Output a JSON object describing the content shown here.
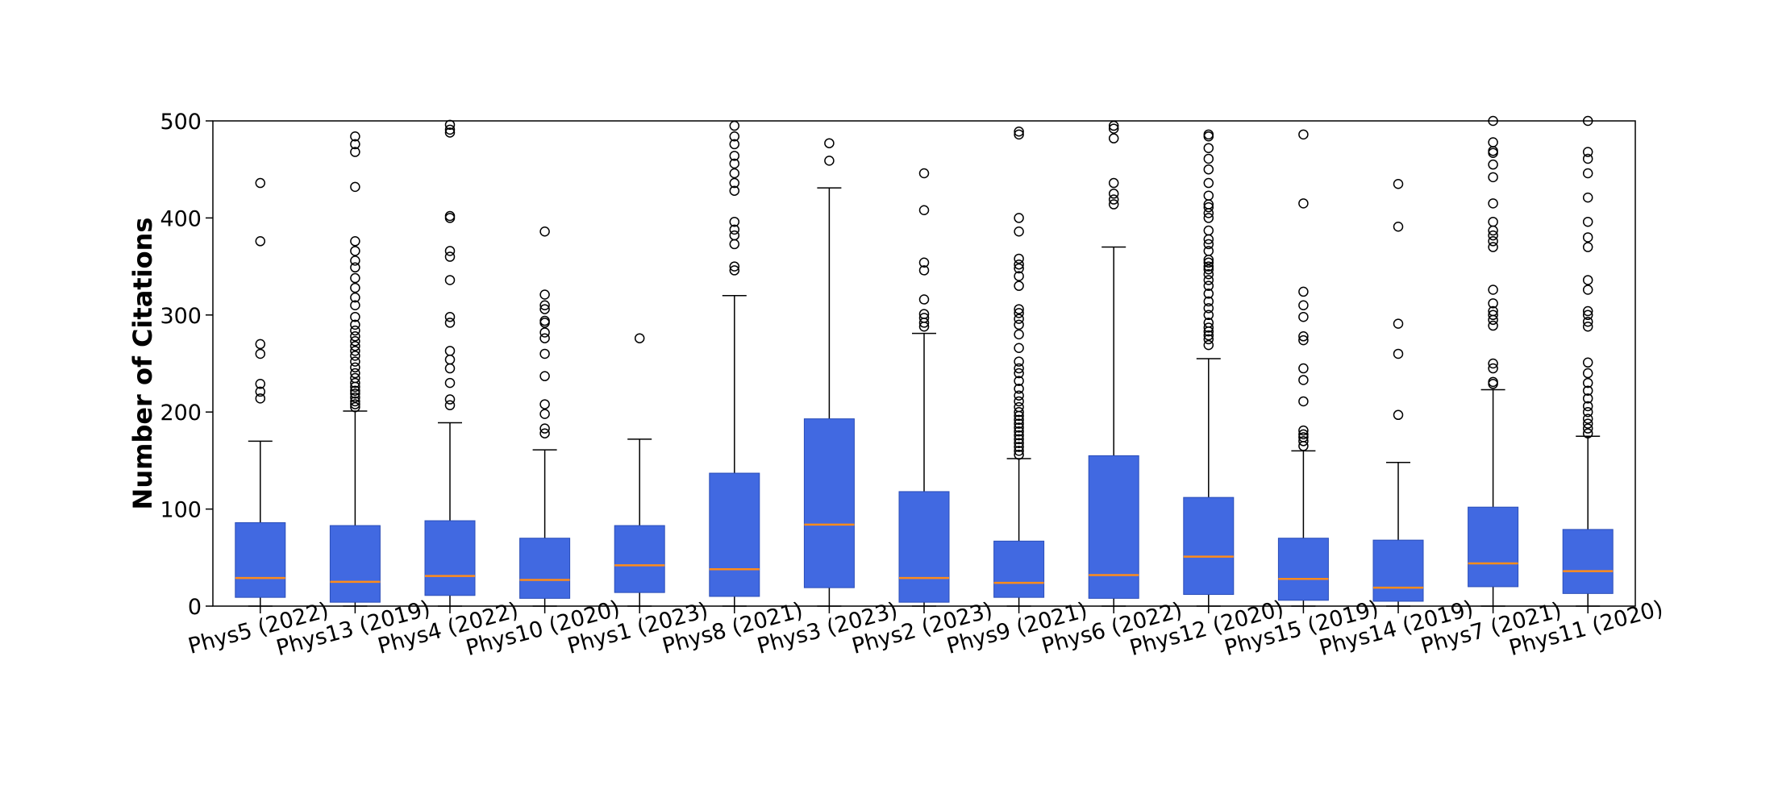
{
  "chart_data": {
    "type": "box",
    "title": "",
    "xlabel": "",
    "ylabel": "Number of Citations",
    "ylim": [
      0,
      500
    ],
    "yticks": [
      0,
      100,
      200,
      300,
      400,
      500
    ],
    "grid": false,
    "legend": "none",
    "box_color": "#4169e1",
    "median_color": "#ff8c1a",
    "categories": [
      "Phys5 (2022)",
      "Phys13 (2019)",
      "Phys4 (2022)",
      "Phys10 (2020)",
      "Phys1 (2023)",
      "Phys8 (2021)",
      "Phys3 (2023)",
      "Phys2 (2023)",
      "Phys9 (2021)",
      "Phys6 (2022)",
      "Phys12 (2020)",
      "Phys15 (2019)",
      "Phys14 (2019)",
      "Phys7 (2021)",
      "Phys11 (2020)"
    ],
    "boxes": [
      {
        "whislo": 0,
        "q1": 9,
        "med": 29,
        "q3": 86,
        "whishi": 170,
        "fliers": [
          214,
          221,
          229,
          260,
          270,
          376,
          436
        ]
      },
      {
        "whislo": 0,
        "q1": 4,
        "med": 25,
        "q3": 83,
        "whishi": 201,
        "fliers": [
          205,
          208,
          211,
          215,
          219,
          222,
          226,
          230,
          235,
          240,
          246,
          252,
          258,
          263,
          268,
          273,
          278,
          284,
          290,
          298,
          310,
          318,
          328,
          338,
          349,
          356,
          366,
          376,
          432,
          468,
          476,
          484
        ]
      },
      {
        "whislo": 0,
        "q1": 11,
        "med": 31,
        "q3": 88,
        "whishi": 189,
        "fliers": [
          207,
          213,
          230,
          245,
          254,
          263,
          292,
          298,
          336,
          360,
          366,
          400,
          402,
          488,
          491,
          496
        ]
      },
      {
        "whislo": 0,
        "q1": 8,
        "med": 27,
        "q3": 70,
        "whishi": 161,
        "fliers": [
          178,
          183,
          198,
          208,
          237,
          260,
          276,
          282,
          292,
          294,
          306,
          310,
          321,
          386
        ]
      },
      {
        "whislo": 0,
        "q1": 14,
        "med": 42,
        "q3": 83,
        "whishi": 172,
        "fliers": [
          276
        ]
      },
      {
        "whislo": 0,
        "q1": 10,
        "med": 38,
        "q3": 137,
        "whishi": 320,
        "fliers": [
          346,
          350,
          373,
          382,
          388,
          396,
          428,
          436,
          446,
          456,
          464,
          476,
          484,
          495
        ]
      },
      {
        "whislo": 0,
        "q1": 19,
        "med": 84,
        "q3": 193,
        "whishi": 431,
        "fliers": [
          459,
          477
        ]
      },
      {
        "whislo": 0,
        "q1": 4,
        "med": 29,
        "q3": 118,
        "whishi": 281,
        "fliers": [
          288,
          292,
          297,
          301,
          316,
          346,
          354,
          408,
          446
        ]
      },
      {
        "whislo": 0,
        "q1": 9,
        "med": 24,
        "q3": 67,
        "whishi": 152,
        "fliers": [
          156,
          160,
          164,
          168,
          172,
          176,
          180,
          184,
          188,
          192,
          196,
          200,
          205,
          211,
          217,
          224,
          232,
          240,
          245,
          252,
          266,
          280,
          290,
          296,
          302,
          306,
          330,
          340,
          348,
          352,
          358,
          386,
          400,
          486,
          489
        ]
      },
      {
        "whislo": 0,
        "q1": 8,
        "med": 32,
        "q3": 155,
        "whishi": 370,
        "fliers": [
          414,
          419,
          425,
          436,
          482,
          492,
          495
        ]
      },
      {
        "whislo": 0,
        "q1": 12,
        "med": 51,
        "q3": 112,
        "whishi": 255,
        "fliers": [
          269,
          275,
          279,
          283,
          287,
          292,
          300,
          307,
          314,
          322,
          330,
          336,
          342,
          347,
          350,
          354,
          357,
          366,
          373,
          378,
          387,
          400,
          405,
          411,
          414,
          423,
          436,
          450,
          461,
          472,
          484,
          486
        ]
      },
      {
        "whislo": 0,
        "q1": 6,
        "med": 28,
        "q3": 70,
        "whishi": 160,
        "fliers": [
          165,
          170,
          174,
          177,
          181,
          211,
          233,
          245,
          274,
          278,
          298,
          310,
          324,
          415,
          486
        ]
      },
      {
        "whislo": 0,
        "q1": 5,
        "med": 19,
        "q3": 68,
        "whishi": 148,
        "fliers": [
          197,
          260,
          291,
          391,
          435
        ]
      },
      {
        "whislo": 0,
        "q1": 20,
        "med": 44,
        "q3": 102,
        "whishi": 223,
        "fliers": [
          229,
          231,
          245,
          250,
          289,
          295,
          300,
          304,
          312,
          326,
          370,
          376,
          382,
          387,
          396,
          415,
          442,
          455,
          467,
          469,
          478,
          500
        ]
      },
      {
        "whislo": 0,
        "q1": 13,
        "med": 36,
        "q3": 79,
        "whishi": 175,
        "fliers": [
          178,
          183,
          188,
          193,
          200,
          206,
          214,
          222,
          230,
          240,
          251,
          288,
          293,
          300,
          304,
          326,
          336,
          370,
          380,
          396,
          421,
          446,
          461,
          468,
          500
        ]
      }
    ]
  }
}
